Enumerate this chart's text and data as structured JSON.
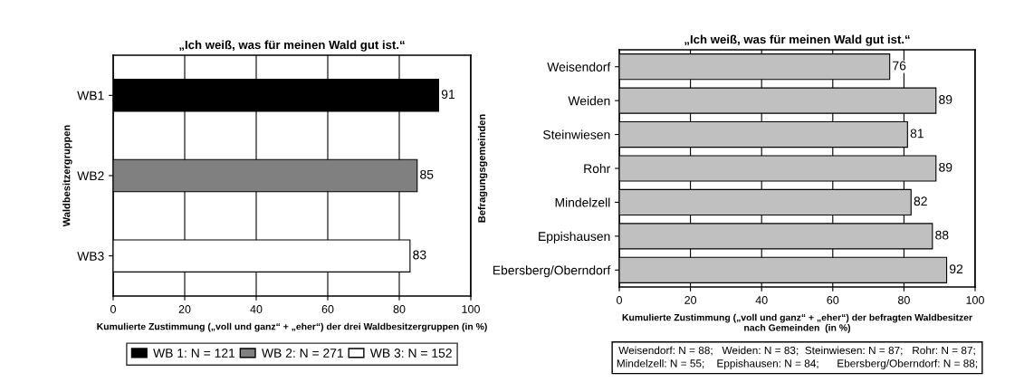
{
  "chart_data": [
    {
      "type": "bar",
      "orientation": "horizontal",
      "title": "„Ich weiß, was für meinen Wald gut ist.“",
      "xlabel": "Kumulierte Zustimmung („voll und ganz“ + „eher“) der drei Waldbesitzergruppen (in %)",
      "ylabel": "Waldbesitzergruppen",
      "categories": [
        "WB1",
        "WB2",
        "WB3"
      ],
      "series": [
        {
          "name": "WB 1: N = 121",
          "color": "#000000",
          "values": [
            91,
            null,
            null
          ]
        },
        {
          "name": "WB 2: N = 271",
          "color": "#808080",
          "values": [
            null,
            85,
            null
          ]
        },
        {
          "name": "WB 3: N = 152",
          "color": "#ffffff",
          "values": [
            null,
            null,
            83
          ]
        }
      ],
      "xlim": [
        0,
        100
      ],
      "xticks": [
        0,
        20,
        40,
        60,
        80,
        100
      ],
      "grid": "x",
      "data_labels": true,
      "legend": "bottom"
    },
    {
      "type": "bar",
      "orientation": "horizontal",
      "title": "„Ich weiß, was für meinen Wald gut ist.“",
      "xlabel": "Kumulierte Zustimmung („voll und ganz“ + „eher“) der befragten Waldbesitzer\nnach Gemeinden  (in %)",
      "ylabel": "Befragungsgemeinden",
      "categories": [
        "Weisendorf",
        "Weiden",
        "Steinwiesen",
        "Rohr",
        "Mindelzell",
        "Eppishausen",
        "Ebersberg/Oberndorf"
      ],
      "series": [
        {
          "color": "#c0c0c0",
          "values": [
            76,
            89,
            81,
            89,
            82,
            88,
            92
          ]
        }
      ],
      "xlim": [
        0,
        100
      ],
      "xticks": [
        0,
        20,
        40,
        60,
        80,
        100
      ],
      "grid": "x",
      "data_labels": true,
      "annotations": [
        "Weisendorf: N = 88;   Weiden: N = 83;  Steinwiesen: N = 87;   Rohr: N = 87;\nMindelzell: N = 55;    Eppishausen: N = 84;      Ebersberg/Oberndorf: N = 88;"
      ]
    }
  ]
}
